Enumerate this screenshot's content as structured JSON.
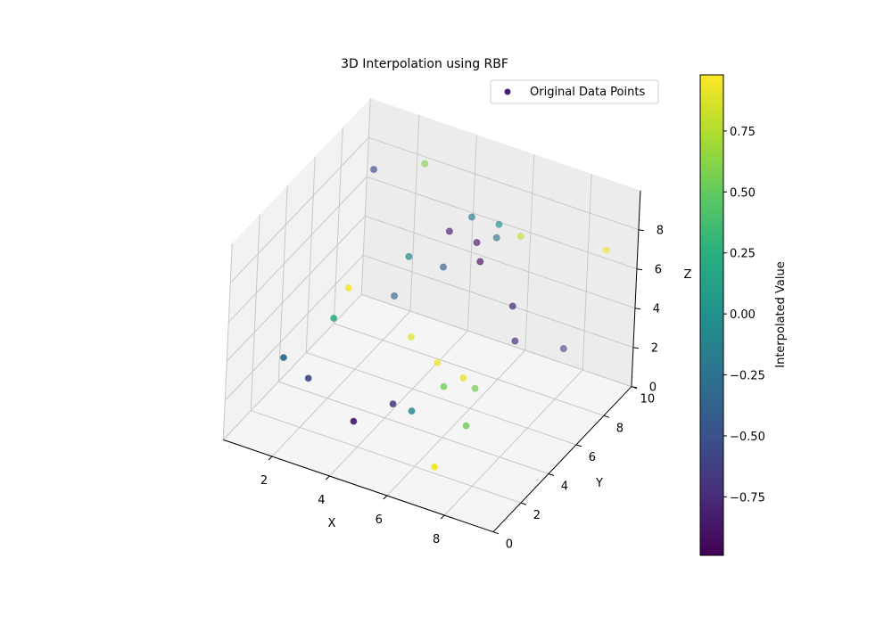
{
  "chart_data": {
    "type": "scatter",
    "projection": "3d",
    "title": "3D Interpolation using RBF",
    "xlabel": "X",
    "ylabel": "Y",
    "zlabel": "Z",
    "xlim": [
      0.3,
      9.7
    ],
    "ylim": [
      0,
      10
    ],
    "zlim": [
      0,
      10
    ],
    "xticks": [
      "2",
      "4",
      "6",
      "8"
    ],
    "yticks": [
      "0",
      "2",
      "4",
      "6",
      "8",
      "10"
    ],
    "zticks": [
      "0",
      "2",
      "4",
      "6",
      "8"
    ],
    "grid": true,
    "legend": {
      "placement": "upper-right",
      "entries": [
        "Original Data Points"
      ],
      "marker_color": "#481f70"
    },
    "colormap": "viridis",
    "colorbar": {
      "label": "Interpolated Value",
      "range": [
        -0.99,
        0.98
      ],
      "ticks": [
        "0.75",
        "0.50",
        "0.25",
        "0.00",
        "−0.25",
        "−0.50",
        "−0.75"
      ]
    },
    "points": [
      {
        "x": 1.7,
        "y": 7.4,
        "z": 9,
        "value": -0.55
      },
      {
        "x": 2.9,
        "y": 8.6,
        "z": 9,
        "value": 0.6
      },
      {
        "x": 5.0,
        "y": 7.7,
        "z": 8,
        "value": -0.2
      },
      {
        "x": 5.9,
        "y": 7.8,
        "z": 8,
        "value": 0.0
      },
      {
        "x": 4.3,
        "y": 7.6,
        "z": 7,
        "value": -0.85
      },
      {
        "x": 5.3,
        "y": 7.5,
        "z": 7,
        "value": -0.85
      },
      {
        "x": 5.7,
        "y": 8.1,
        "z": 7,
        "value": -0.25
      },
      {
        "x": 6.3,
        "y": 8.6,
        "z": 7,
        "value": 0.8
      },
      {
        "x": 8.9,
        "y": 9.4,
        "z": 7,
        "value": 0.95
      },
      {
        "x": 3.4,
        "y": 6.6,
        "z": 6,
        "value": -0.1
      },
      {
        "x": 4.1,
        "y": 7.7,
        "z": 5,
        "value": -0.45
      },
      {
        "x": 5.4,
        "y": 7.6,
        "z": 6,
        "value": -0.95
      },
      {
        "x": 2.6,
        "y": 3.9,
        "z": 6,
        "value": 0.95
      },
      {
        "x": 2.6,
        "y": 7.4,
        "z": 3,
        "value": -0.35
      },
      {
        "x": 6.9,
        "y": 6.9,
        "z": 5,
        "value": -0.8
      },
      {
        "x": 2.5,
        "y": 3.1,
        "z": 5,
        "value": 0.2
      },
      {
        "x": 3.6,
        "y": 6.6,
        "z": 2,
        "value": 0.9
      },
      {
        "x": 6.9,
        "y": 7.2,
        "z": 3,
        "value": -0.75
      },
      {
        "x": 7.9,
        "y": 8.7,
        "z": 2,
        "value": -0.6
      },
      {
        "x": 1.7,
        "y": 1.2,
        "z": 4,
        "value": -0.3
      },
      {
        "x": 5.4,
        "y": 4.7,
        "z": 3,
        "value": 0.95
      },
      {
        "x": 6.0,
        "y": 5.4,
        "z": 2,
        "value": 0.9
      },
      {
        "x": 2.4,
        "y": 1.6,
        "z": 3,
        "value": -0.55
      },
      {
        "x": 5.7,
        "y": 4.6,
        "z": 2,
        "value": 0.55
      },
      {
        "x": 6.1,
        "y": 6.1,
        "z": 1,
        "value": 0.55
      },
      {
        "x": 4.8,
        "y": 2.8,
        "z": 2,
        "value": -0.65
      },
      {
        "x": 5.0,
        "y": 3.8,
        "z": 1,
        "value": -0.1
      },
      {
        "x": 4.2,
        "y": 1.2,
        "z": 2,
        "value": -0.8
      },
      {
        "x": 6.8,
        "y": 4.0,
        "z": 1,
        "value": 0.55
      },
      {
        "x": 7.0,
        "y": 1.3,
        "z": 1,
        "value": 0.95
      }
    ]
  }
}
